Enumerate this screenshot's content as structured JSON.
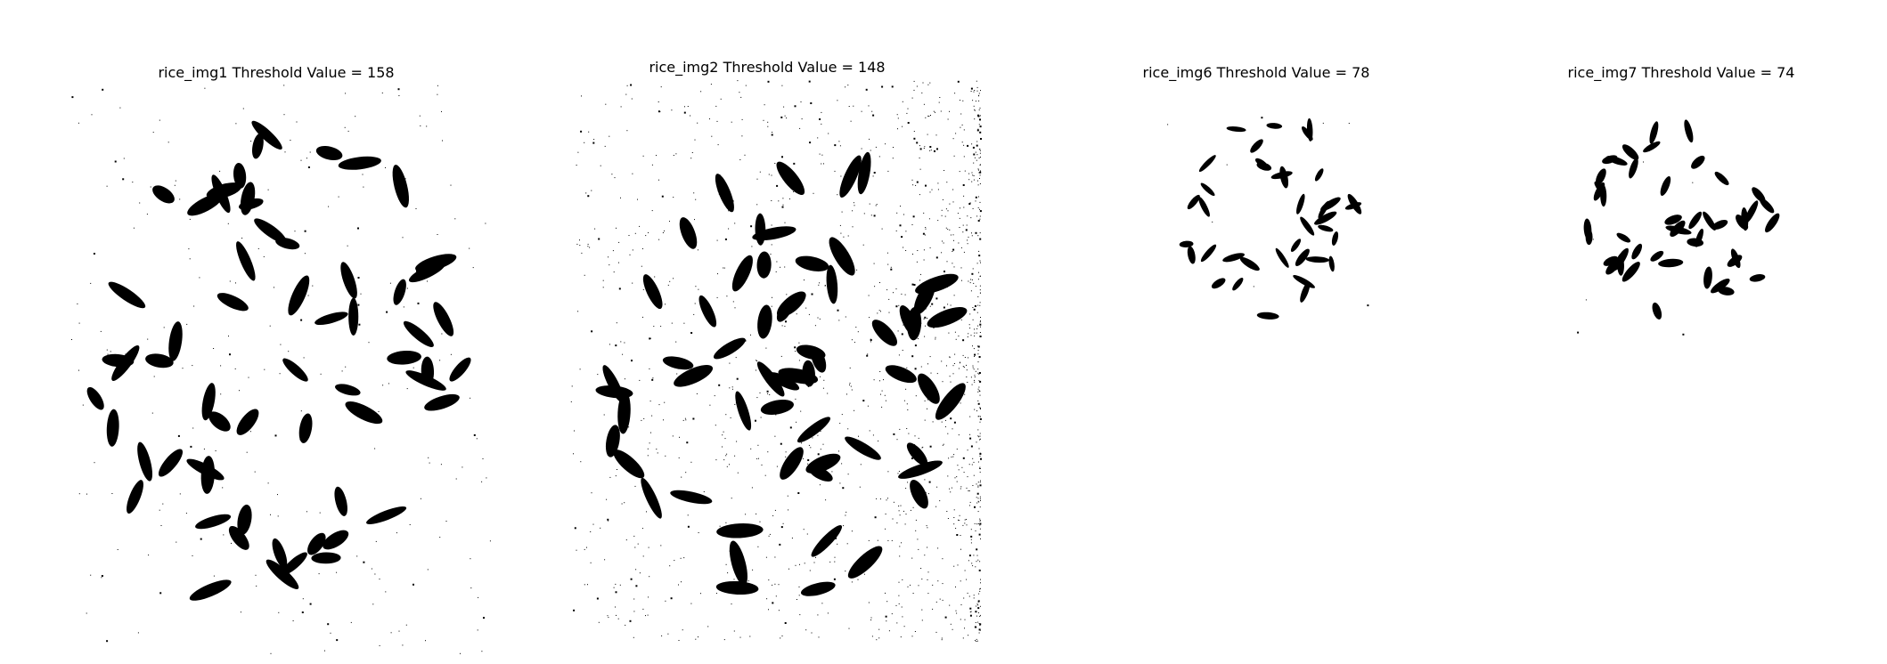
{
  "figure": {
    "panels": [
      {
        "title": "rice_img1 Threshold Value = 158"
      },
      {
        "title": "rice_img2 Threshold Value = 148"
      },
      {
        "title": "rice_img6 Threshold Value = 78"
      },
      {
        "title": "rice_img7 Threshold Value = 74"
      }
    ],
    "colors": {
      "background": "#ffffff",
      "foreground": "#000000"
    }
  }
}
